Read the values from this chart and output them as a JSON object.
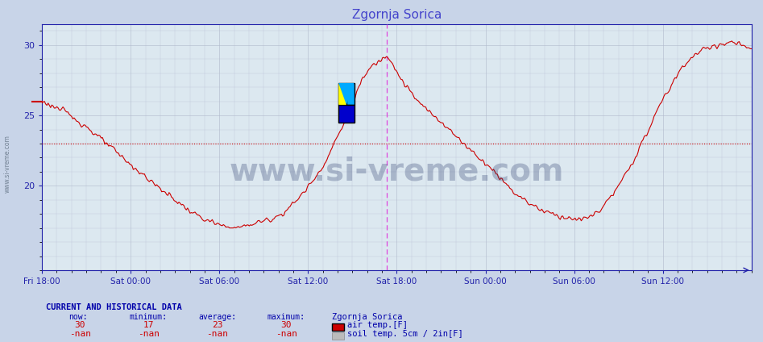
{
  "title": "Zgornja Sorica",
  "title_color": "#4444cc",
  "bg_color": "#c8d4e8",
  "plot_bg_color": "#dce8f0",
  "grid_color": "#b0b8cc",
  "line_color": "#cc0000",
  "avg_line_color": "#cc0000",
  "vline_color": "#dd44dd",
  "axis_color": "#2222aa",
  "tick_color": "#2222aa",
  "watermark_text": "www.si-vreme.com",
  "watermark_color": "#223366",
  "watermark_alpha": 0.28,
  "watermark_fontsize": 28,
  "xlim_start": 0,
  "xlim_end": 576,
  "ylim_min": 14,
  "ylim_max": 31.5,
  "yticks": [
    20,
    25,
    30
  ],
  "ytick_labels": [
    "20",
    "25",
    "30"
  ],
  "xtick_positions": [
    0,
    72,
    144,
    216,
    288,
    360,
    432,
    504
  ],
  "xtick_labels": [
    "Fri 18:00",
    "Sat 00:00",
    "Sat 06:00",
    "Sat 12:00",
    "Sat 18:00",
    "Sun 00:00",
    "Sun 06:00",
    "Sun 12:00"
  ],
  "avg_value": 23,
  "vline_x": 280,
  "small_mark_y": 26.0,
  "legend_items": [
    {
      "label": "air temp.[F]",
      "color": "#cc0000"
    },
    {
      "label": "soil temp. 5cm / 2in[F]",
      "color": "#aaaaaa"
    }
  ],
  "footer_title": "CURRENT AND HISTORICAL DATA",
  "footer_cols": [
    "now:",
    "minimum:",
    "average:",
    "maximum:",
    "Zgornja Sorica"
  ],
  "footer_row1": [
    "30",
    "17",
    "23",
    "30"
  ],
  "footer_row2": [
    "-nan",
    "-nan",
    "-nan",
    "-nan"
  ],
  "keypoints": [
    [
      0,
      26.0
    ],
    [
      18,
      25.3
    ],
    [
      36,
      24.2
    ],
    [
      55,
      22.8
    ],
    [
      72,
      21.5
    ],
    [
      90,
      20.2
    ],
    [
      108,
      19.0
    ],
    [
      120,
      18.2
    ],
    [
      132,
      17.6
    ],
    [
      144,
      17.2
    ],
    [
      150,
      17.05
    ],
    [
      158,
      17.0
    ],
    [
      162,
      17.1
    ],
    [
      168,
      17.2
    ],
    [
      175,
      17.4
    ],
    [
      185,
      17.6
    ],
    [
      195,
      18.0
    ],
    [
      205,
      18.8
    ],
    [
      215,
      19.8
    ],
    [
      225,
      21.0
    ],
    [
      232,
      22.0
    ],
    [
      238,
      23.2
    ],
    [
      243,
      24.0
    ],
    [
      247,
      24.8
    ],
    [
      250,
      25.5
    ],
    [
      253,
      26.0
    ],
    [
      256,
      26.8
    ],
    [
      259,
      27.3
    ],
    [
      262,
      27.8
    ],
    [
      265,
      28.2
    ],
    [
      268,
      28.5
    ],
    [
      271,
      28.7
    ],
    [
      274,
      28.9
    ],
    [
      277,
      29.1
    ],
    [
      280,
      29.3
    ],
    [
      283,
      29.0
    ],
    [
      287,
      28.3
    ],
    [
      292,
      27.5
    ],
    [
      298,
      26.8
    ],
    [
      305,
      26.0
    ],
    [
      315,
      25.2
    ],
    [
      325,
      24.5
    ],
    [
      335,
      23.6
    ],
    [
      345,
      22.8
    ],
    [
      355,
      22.0
    ],
    [
      365,
      21.2
    ],
    [
      375,
      20.3
    ],
    [
      385,
      19.4
    ],
    [
      395,
      18.8
    ],
    [
      405,
      18.3
    ],
    [
      415,
      18.0
    ],
    [
      422,
      17.8
    ],
    [
      428,
      17.7
    ],
    [
      432,
      17.6
    ],
    [
      438,
      17.6
    ],
    [
      445,
      17.8
    ],
    [
      452,
      18.2
    ],
    [
      460,
      19.0
    ],
    [
      470,
      20.2
    ],
    [
      480,
      21.8
    ],
    [
      490,
      23.5
    ],
    [
      500,
      25.5
    ],
    [
      510,
      27.0
    ],
    [
      520,
      28.5
    ],
    [
      530,
      29.3
    ],
    [
      540,
      29.8
    ],
    [
      548,
      30.0
    ],
    [
      555,
      30.1
    ],
    [
      560,
      30.2
    ],
    [
      565,
      30.1
    ],
    [
      570,
      29.9
    ],
    [
      574,
      29.7
    ],
    [
      576,
      29.6
    ]
  ]
}
